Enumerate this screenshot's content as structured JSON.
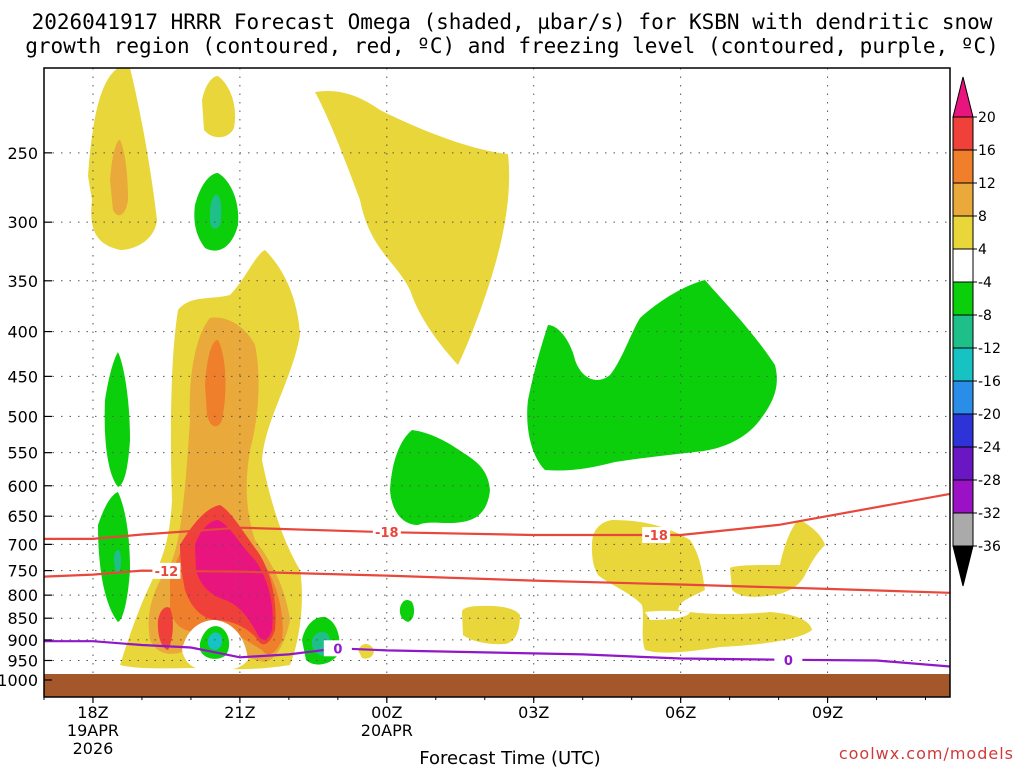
{
  "chart_data": {
    "type": "heatmap",
    "title_line1": "2026041917 HRRR Forecast Omega (shaded, µbar/s) for KSBN with dendritic snow",
    "title_line2": "growth region (contoured, red, ºC) and freezing level (contoured, purple, ºC)",
    "xlabel": "Forecast Time (UTC)",
    "x_ticks": [
      {
        "label": "18Z",
        "sub": [
          "19APR",
          "2026"
        ],
        "hour": 0
      },
      {
        "label": "21Z",
        "sub": [],
        "hour": 3
      },
      {
        "label": "00Z",
        "sub": [
          "20APR"
        ],
        "hour": 6
      },
      {
        "label": "03Z",
        "sub": [],
        "hour": 9
      },
      {
        "label": "06Z",
        "sub": [],
        "hour": 12
      },
      {
        "label": "09Z",
        "sub": [],
        "hour": 15
      }
    ],
    "xlim_hours": [
      -1,
      17.5
    ],
    "ylabel": "",
    "y_ticks": [
      "250",
      "300",
      "350",
      "400",
      "450",
      "500",
      "550",
      "600",
      "650",
      "700",
      "750",
      "800",
      "850",
      "900",
      "950",
      "1000"
    ],
    "ylim_hpa": [
      1000,
      200
    ],
    "colorbar": {
      "labels": [
        "20",
        "16",
        "12",
        "8",
        "4",
        "-4",
        "-8",
        "-12",
        "-16",
        "-20",
        "-24",
        "-28",
        "-32",
        "-36"
      ],
      "colors": [
        "#e8157f",
        "#f0403a",
        "#ef7f2a",
        "#e9a93b",
        "#e8d63a",
        "#ffffff",
        "#0ccf0c",
        "#1fbf8a",
        "#17c2c2",
        "#2a8ee8",
        "#2d33d6",
        "#6a16c2",
        "#9b12c6",
        "#aaaaaa",
        "#000000"
      ]
    },
    "contours": [
      {
        "label": "-18",
        "color": "#e8473c",
        "points": [
          [
            -1,
            690
          ],
          [
            0,
            690
          ],
          [
            1,
            682
          ],
          [
            3,
            670
          ],
          [
            6,
            678
          ],
          [
            9,
            683
          ],
          [
            12,
            683
          ],
          [
            14,
            665
          ],
          [
            17.5,
            613
          ]
        ]
      },
      {
        "label": "-12",
        "color": "#e8473c",
        "points": [
          [
            -1,
            762
          ],
          [
            0,
            758
          ],
          [
            1,
            750
          ],
          [
            3,
            752
          ],
          [
            6,
            760
          ],
          [
            9,
            770
          ],
          [
            12,
            778
          ],
          [
            15,
            787
          ],
          [
            17.5,
            795
          ]
        ]
      },
      {
        "label": "0",
        "color": "#9018c8",
        "points": [
          [
            -1,
            903
          ],
          [
            0,
            903
          ],
          [
            1,
            912
          ],
          [
            2,
            918
          ],
          [
            3,
            942
          ],
          [
            4,
            935
          ],
          [
            5,
            920
          ],
          [
            6,
            925
          ],
          [
            8,
            930
          ],
          [
            10,
            935
          ],
          [
            12,
            945
          ],
          [
            14,
            948
          ],
          [
            16,
            950
          ],
          [
            17.5,
            965
          ]
        ]
      }
    ],
    "ground_color": "#a5572c"
  },
  "credit": "coolwx.com/models"
}
